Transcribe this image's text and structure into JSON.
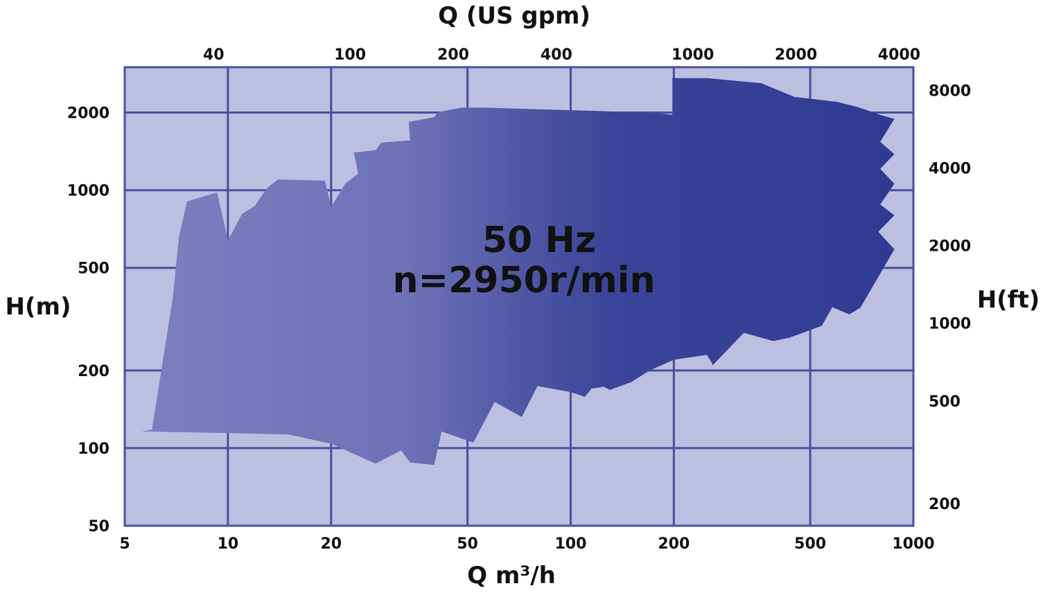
{
  "chart_data": {
    "type": "area",
    "title": "",
    "annotation": [
      "50 Hz",
      "n=2950r/min"
    ],
    "xlabel": "Q m³/h",
    "x2label": "Q (US gpm)",
    "ylabel": "H(m)",
    "y2label": "H(ft)",
    "x_scale": "log",
    "y_scale": "log",
    "xlim": [
      5,
      1000
    ],
    "ylim": [
      50,
      3000
    ],
    "x_ticks": [
      "5",
      "10",
      "20",
      "50",
      "100",
      "200",
      "500",
      "1000"
    ],
    "x_tick_values": [
      5,
      10,
      20,
      50,
      100,
      200,
      500,
      1000
    ],
    "y_ticks": [
      "50",
      "100",
      "200",
      "500",
      "1000",
      "2000"
    ],
    "y_tick_values": [
      50,
      100,
      200,
      500,
      1000,
      2000
    ],
    "x2_ticks": [
      "40",
      "100",
      "200",
      "400",
      "1000",
      "2000",
      "4000"
    ],
    "x2_tick_values_gpm": [
      40,
      100,
      200,
      400,
      1000,
      2000,
      4000
    ],
    "y2_ticks": [
      "8000",
      "4000",
      "2000",
      "1000",
      "500",
      "200"
    ],
    "y2_tick_values_ft": [
      8000,
      4000,
      2000,
      1000,
      500,
      200
    ],
    "grid": true,
    "colors": {
      "plot_background": "#bcbfe0",
      "grid": "#4a4f9e",
      "envelope_light": "#7c7fbf",
      "envelope_dark": "#2f3a92"
    },
    "envelope_boundary": [
      [
        5.6,
        116
      ],
      [
        6.0,
        118
      ],
      [
        6.9,
        380
      ],
      [
        7.2,
        660
      ],
      [
        7.6,
        905
      ],
      [
        9.3,
        980
      ],
      [
        10.0,
        640
      ],
      [
        11.0,
        810
      ],
      [
        12.0,
        870
      ],
      [
        13.0,
        1020
      ],
      [
        14.0,
        1100
      ],
      [
        19.2,
        1090
      ],
      [
        20.0,
        860
      ],
      [
        22.0,
        1060
      ],
      [
        24.0,
        1160
      ],
      [
        23.3,
        1400
      ],
      [
        27.0,
        1430
      ],
      [
        28.0,
        1530
      ],
      [
        34.0,
        1560
      ],
      [
        33.7,
        1840
      ],
      [
        40.0,
        1920
      ],
      [
        41.0,
        2010
      ],
      [
        48.0,
        2090
      ],
      [
        56.0,
        2090
      ],
      [
        80.0,
        2060
      ],
      [
        120.0,
        2030
      ],
      [
        180.0,
        1990
      ],
      [
        198.0,
        1960
      ],
      [
        198.0,
        2720
      ],
      [
        250.0,
        2720
      ],
      [
        360.0,
        2600
      ],
      [
        450.0,
        2300
      ],
      [
        520.0,
        2250
      ],
      [
        600.0,
        2200
      ],
      [
        690.0,
        2100
      ],
      [
        800.0,
        1960
      ],
      [
        880.0,
        1890
      ],
      [
        800.0,
        1540
      ],
      [
        880.0,
        1380
      ],
      [
        800.0,
        1210
      ],
      [
        880.0,
        1060
      ],
      [
        800.0,
        880
      ],
      [
        880.0,
        800
      ],
      [
        790.0,
        690
      ],
      [
        880.0,
        590
      ],
      [
        700.0,
        350
      ],
      [
        650.0,
        330
      ],
      [
        580.0,
        352
      ],
      [
        540.0,
        298
      ],
      [
        435.0,
        268
      ],
      [
        390.0,
        260
      ],
      [
        320.0,
        280
      ],
      [
        260.0,
        210
      ],
      [
        250.0,
        230
      ],
      [
        200.0,
        220
      ],
      [
        170.0,
        200
      ],
      [
        150.0,
        180
      ],
      [
        130.0,
        168
      ],
      [
        125.0,
        173
      ],
      [
        115.0,
        170
      ],
      [
        110.0,
        158
      ],
      [
        100.0,
        165
      ],
      [
        80.0,
        174
      ],
      [
        72.0,
        132
      ],
      [
        60.0,
        151
      ],
      [
        52.0,
        105
      ],
      [
        42.0,
        116
      ],
      [
        40.0,
        86
      ],
      [
        34.0,
        88
      ],
      [
        32.0,
        98
      ],
      [
        27.0,
        87
      ],
      [
        20.0,
        104
      ],
      [
        15.0,
        113
      ],
      [
        8.0,
        115
      ],
      [
        5.6,
        116
      ]
    ]
  }
}
